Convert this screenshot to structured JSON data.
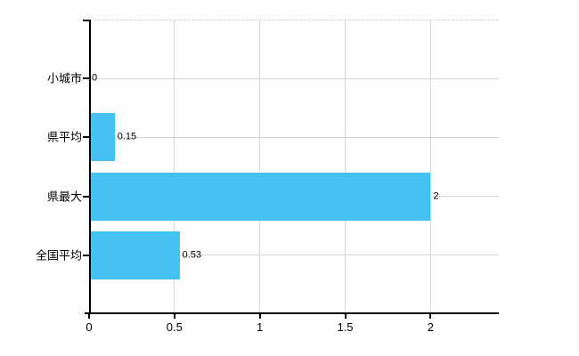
{
  "chart_data": {
    "type": "bar",
    "orientation": "horizontal",
    "title": "",
    "xlabel": "",
    "ylabel": "",
    "categories": [
      "小城市",
      "県平均",
      "県最大",
      "全国平均"
    ],
    "values": [
      0,
      0.15,
      2,
      0.53
    ],
    "value_labels": [
      "0",
      "0.15",
      "2",
      "0.53"
    ],
    "x_ticks": [
      0,
      0.5,
      1,
      1.5,
      2
    ],
    "x_tick_labels": [
      "0",
      "0.5",
      "1",
      "1.5",
      "2"
    ],
    "xlim": [
      0,
      2.4
    ],
    "grid": true,
    "legend": false,
    "colors": {
      "bar": "#44c1f1",
      "grid": "#d5dbd3",
      "axis": "#000000",
      "background": "#ffffff",
      "top_border": "#ccd2cc"
    }
  }
}
